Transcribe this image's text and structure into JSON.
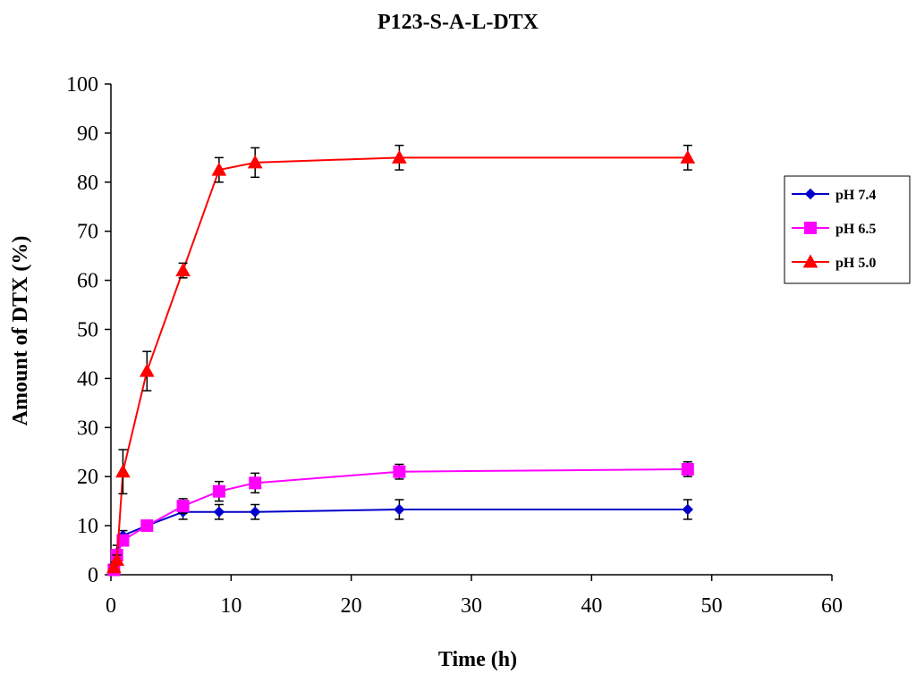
{
  "chart_data": {
    "type": "line",
    "title": "P123-S-A-L-DTX",
    "xlabel": "Time (h)",
    "ylabel": "Amount of DTX (%)",
    "xlim": [
      0,
      60
    ],
    "ylim": [
      0,
      100
    ],
    "x_ticks": [
      0,
      10,
      20,
      30,
      40,
      50,
      60
    ],
    "y_ticks": [
      0,
      10,
      20,
      30,
      40,
      50,
      60,
      70,
      80,
      90,
      100
    ],
    "grid": false,
    "legend_position": "right",
    "series": [
      {
        "name": "pH 7.4",
        "color": "#0000cc",
        "marker": "diamond",
        "x": [
          0.25,
          0.5,
          1,
          3,
          6,
          9,
          12,
          24,
          48
        ],
        "y": [
          1.5,
          4.5,
          8.0,
          10.0,
          12.8,
          12.8,
          12.8,
          13.3,
          13.3
        ],
        "err": [
          0.5,
          1.5,
          1.0,
          1.0,
          1.5,
          1.5,
          1.5,
          2.0,
          2.0
        ]
      },
      {
        "name": "pH 6.5",
        "color": "#ff00ff",
        "marker": "square",
        "x": [
          0.25,
          0.5,
          1,
          3,
          6,
          9,
          12,
          24,
          48
        ],
        "y": [
          1.0,
          4.0,
          7.0,
          10.0,
          14.0,
          17.0,
          18.7,
          21.0,
          21.5
        ],
        "err": [
          0.5,
          1.0,
          1.0,
          1.0,
          1.5,
          2.0,
          2.0,
          1.5,
          1.5
        ]
      },
      {
        "name": "pH 5.0",
        "color": "#ff0000",
        "marker": "triangle",
        "x": [
          0.25,
          0.5,
          1,
          3,
          6,
          9,
          12,
          24,
          48
        ],
        "y": [
          1.5,
          3.0,
          21.0,
          41.5,
          62.0,
          82.5,
          84.0,
          85.0,
          85.0
        ],
        "err": [
          0.5,
          1.0,
          4.5,
          4.0,
          1.5,
          2.5,
          3.0,
          2.5,
          2.5
        ]
      }
    ]
  }
}
